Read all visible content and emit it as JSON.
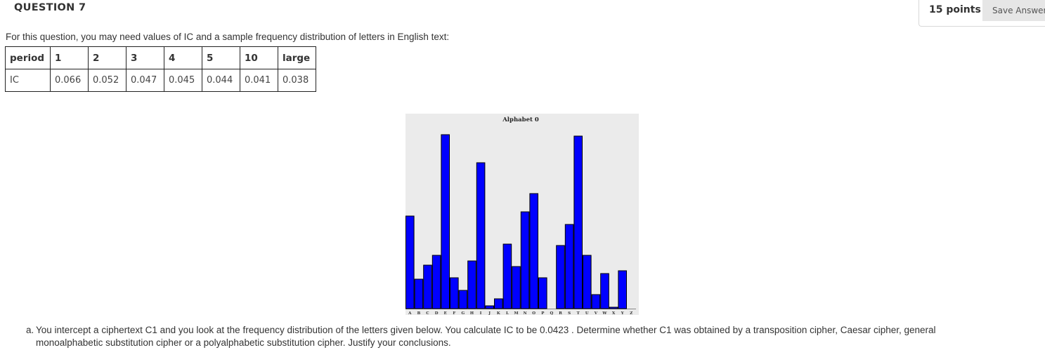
{
  "question": {
    "title": "QUESTION 7",
    "points": "15 points",
    "save_label": "Save Answer"
  },
  "intro": "For this question, you may need values of IC and a sample frequency distribution of letters in English text:",
  "ic_table": {
    "header_label": "period",
    "periods": [
      "1",
      "2",
      "3",
      "4",
      "5",
      "10",
      "large"
    ],
    "row_label": "IC",
    "values": [
      "0.066",
      "0.052",
      "0.047",
      "0.045",
      "0.044",
      "0.041",
      "0.038"
    ]
  },
  "chart_data": {
    "type": "bar",
    "title": "Alphabet 0",
    "categories": [
      "A",
      "B",
      "C",
      "D",
      "E",
      "F",
      "G",
      "H",
      "I",
      "J",
      "K",
      "L",
      "M",
      "N",
      "O",
      "P",
      "Q",
      "R",
      "S",
      "T",
      "U",
      "V",
      "W",
      "X",
      "Y",
      "Z"
    ],
    "values": [
      66,
      21,
      31,
      38,
      124,
      22,
      13,
      34,
      104,
      2,
      7,
      46,
      30,
      69,
      82,
      22,
      0,
      45,
      60,
      123,
      38,
      10,
      25,
      1,
      27,
      0
    ],
    "ylim": [
      0,
      130
    ],
    "bar_color": "#0000ff",
    "background": "#ebebeb"
  },
  "question_a": {
    "label": "a.",
    "line1": "You intercept a ciphertext C1 and you look at the frequency distribution of the  letters given below. You calculate IC to be 0.0423 . Determine whether C1 was obtained by a transposition cipher, Caesar cipher, general",
    "line2": "monoalphabetic substitution cipher or a polyalphabetic substitution cipher.  Justify your conclusions."
  }
}
